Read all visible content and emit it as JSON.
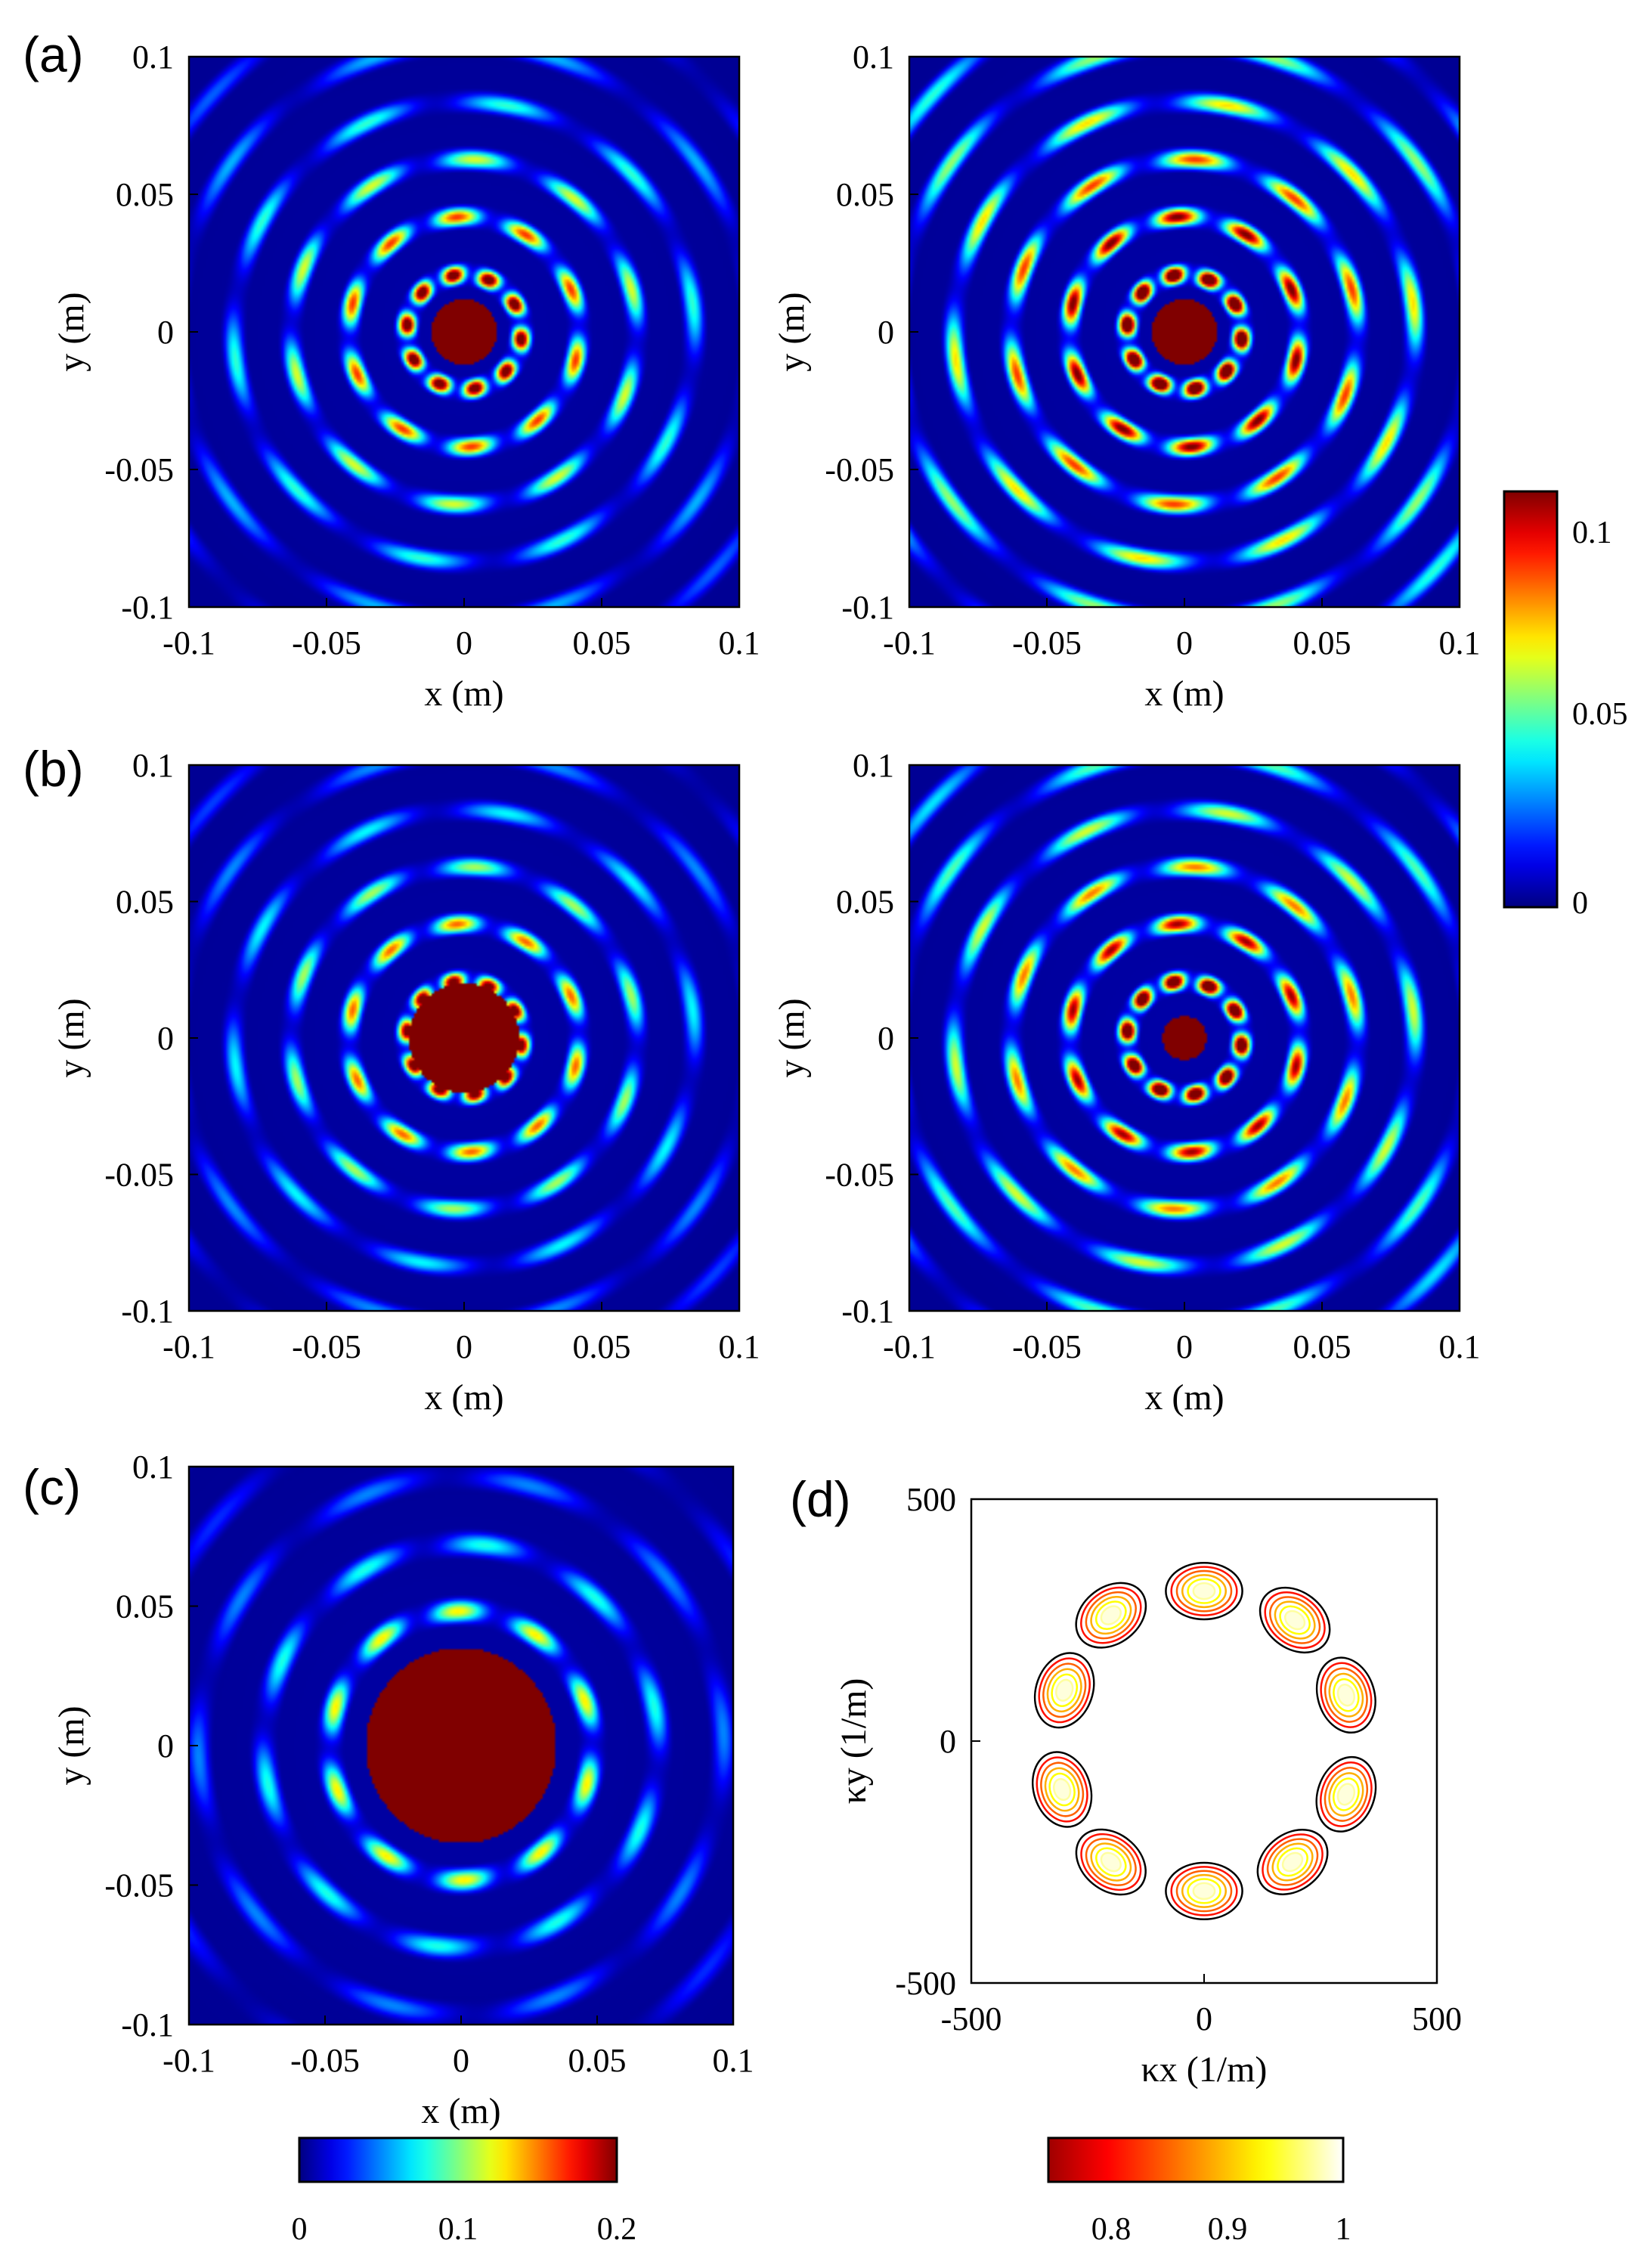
{
  "chart_data": [
    {
      "type": "heatmap",
      "panel_label": "(a)",
      "xlabel": "x (m)",
      "ylabel": "y (m)",
      "xlim": [
        -0.1,
        0.1
      ],
      "ylim": [
        -0.1,
        0.1
      ],
      "x_ticks": [
        "-0.1",
        "-0.05",
        "0",
        "0.05",
        "0.1"
      ],
      "y_ticks": [
        "0.1",
        "0.05",
        "0",
        "-0.05",
        "-0.1"
      ],
      "pattern": {
        "ring_k": 300,
        "lobes": 10,
        "decay": 0.06,
        "core": 0.012
      }
    },
    {
      "type": "heatmap",
      "panel_label": "",
      "xlabel": "x (m)",
      "ylabel": "y (m)",
      "xlim": [
        -0.1,
        0.1
      ],
      "ylim": [
        -0.1,
        0.1
      ],
      "x_ticks": [
        "-0.1",
        "-0.05",
        "0",
        "0.05",
        "0.1"
      ],
      "y_ticks": [
        "0.1",
        "0.05",
        "0",
        "-0.05",
        "-0.1"
      ],
      "pattern": {
        "ring_k": 300,
        "lobes": 10,
        "decay": 0.09,
        "core": 0.012
      }
    },
    {
      "type": "heatmap",
      "panel_label": "(b)",
      "xlabel": "x (m)",
      "ylabel": "y (m)",
      "xlim": [
        -0.1,
        0.1
      ],
      "ylim": [
        -0.1,
        0.1
      ],
      "x_ticks": [
        "-0.1",
        "-0.05",
        "0",
        "0.05",
        "0.1"
      ],
      "y_ticks": [
        "0.1",
        "0.05",
        "0",
        "-0.05",
        "-0.1"
      ],
      "pattern": {
        "ring_k": 300,
        "lobes": 10,
        "decay": 0.055,
        "core": 0.02
      }
    },
    {
      "type": "heatmap",
      "panel_label": "",
      "xlabel": "x (m)",
      "ylabel": "y (m)",
      "xlim": [
        -0.1,
        0.1
      ],
      "ylim": [
        -0.1,
        0.1
      ],
      "x_ticks": [
        "-0.1",
        "-0.05",
        "0",
        "0.05",
        "0.1"
      ],
      "y_ticks": [
        "0.1",
        "0.05",
        "0",
        "-0.05",
        "-0.1"
      ],
      "pattern": {
        "ring_k": 300,
        "lobes": 10,
        "decay": 0.08,
        "core": 0.008
      }
    },
    {
      "type": "heatmap",
      "panel_label": "(c)",
      "xlabel": "x (m)",
      "ylabel": "y (m)",
      "xlim": [
        -0.1,
        0.1
      ],
      "ylim": [
        -0.1,
        0.1
      ],
      "x_ticks": [
        "-0.1",
        "-0.05",
        "0",
        "0.05",
        "0.1"
      ],
      "y_ticks": [
        "0.1",
        "0.05",
        "0",
        "-0.05",
        "-0.1"
      ],
      "pattern": {
        "ring_k": 260,
        "lobes": 10,
        "decay": 0.05,
        "core": 0.035
      }
    },
    {
      "type": "contour",
      "panel_label": "(d)",
      "xlabel": "κx (1/m)",
      "ylabel": "κy (1/m)",
      "xlim": [
        -500,
        500
      ],
      "ylim": [
        -500,
        500
      ],
      "x_ticks": [
        "-500",
        "0",
        "500"
      ],
      "y_ticks": [
        "500",
        "0",
        "-500"
      ],
      "contour_levels": [
        0.76,
        0.8,
        0.84,
        0.88,
        0.92,
        0.96
      ],
      "peaks": [
        {
          "kx": 0,
          "ky": 310
        },
        {
          "kx": 195,
          "ky": 250
        },
        {
          "kx": 305,
          "ky": 95
        },
        {
          "kx": 305,
          "ky": -110
        },
        {
          "kx": 190,
          "ky": -250
        },
        {
          "kx": 0,
          "ky": -310
        },
        {
          "kx": -200,
          "ky": -250
        },
        {
          "kx": -305,
          "ky": -100
        },
        {
          "kx": -300,
          "ky": 105
        },
        {
          "kx": -200,
          "ky": 260
        }
      ]
    }
  ],
  "colorbars": [
    {
      "colormap": "jet",
      "ticks": [
        "0.1",
        "0.05",
        "0"
      ]
    },
    {
      "colormap": "jet",
      "ticks": [
        "0",
        "0.1",
        "0.2"
      ]
    },
    {
      "colormap": "hot",
      "ticks": [
        "0.8",
        "0.9",
        "1"
      ]
    }
  ]
}
